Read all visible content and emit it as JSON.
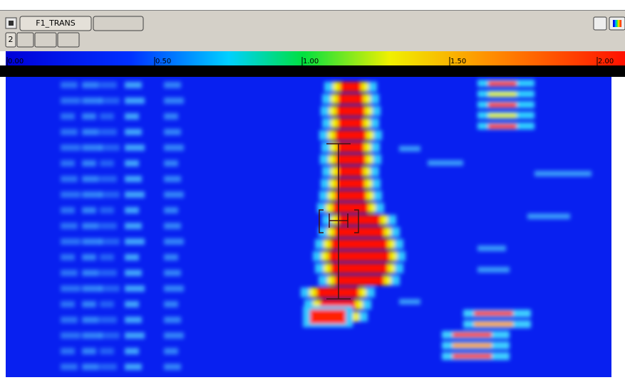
{
  "toolbar": {
    "tab": "F1_TRANS",
    "row2": "2"
  },
  "colorbar": {
    "ticks": [
      "0.00",
      "0.50",
      "1.00",
      "1.50",
      "2.00"
    ]
  }
}
